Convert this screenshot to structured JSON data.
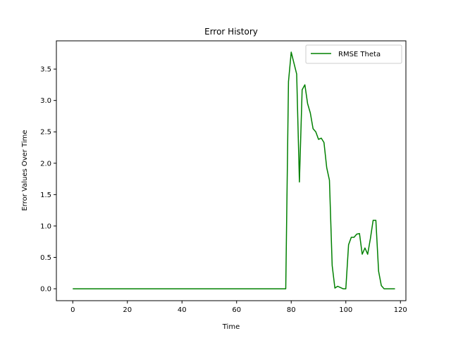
{
  "chart_data": {
    "type": "line",
    "title": "Error History",
    "xlabel": "Time",
    "ylabel": "Error Values Over Time",
    "xlim": [
      -6,
      122
    ],
    "ylim": [
      -0.19,
      3.95
    ],
    "xticks": [
      0,
      20,
      40,
      60,
      80,
      100,
      120
    ],
    "yticks": [
      0.0,
      0.5,
      1.0,
      1.5,
      2.0,
      2.5,
      3.0,
      3.5
    ],
    "legend": "top-right",
    "grid": false,
    "series": [
      {
        "name": "RMSE Theta",
        "color": "#008000",
        "x": [
          0,
          78,
          79,
          80,
          82,
          83,
          84,
          85,
          86,
          87,
          88,
          89,
          90,
          91,
          92,
          93,
          94,
          95,
          96,
          97,
          98,
          99,
          100,
          101,
          102,
          103,
          104,
          105,
          106,
          107,
          108,
          109,
          110,
          111,
          112,
          113,
          114,
          115,
          116,
          118
        ],
        "y": [
          0.0,
          0.0,
          3.3,
          3.77,
          3.42,
          1.7,
          3.17,
          3.25,
          2.95,
          2.8,
          2.55,
          2.5,
          2.38,
          2.4,
          2.33,
          1.93,
          1.73,
          0.37,
          0.01,
          0.04,
          0.02,
          0.0,
          0.0,
          0.7,
          0.82,
          0.82,
          0.87,
          0.88,
          0.55,
          0.65,
          0.55,
          0.8,
          1.09,
          1.09,
          0.28,
          0.05,
          0.0,
          0.0,
          0.0,
          0.0
        ]
      }
    ]
  }
}
